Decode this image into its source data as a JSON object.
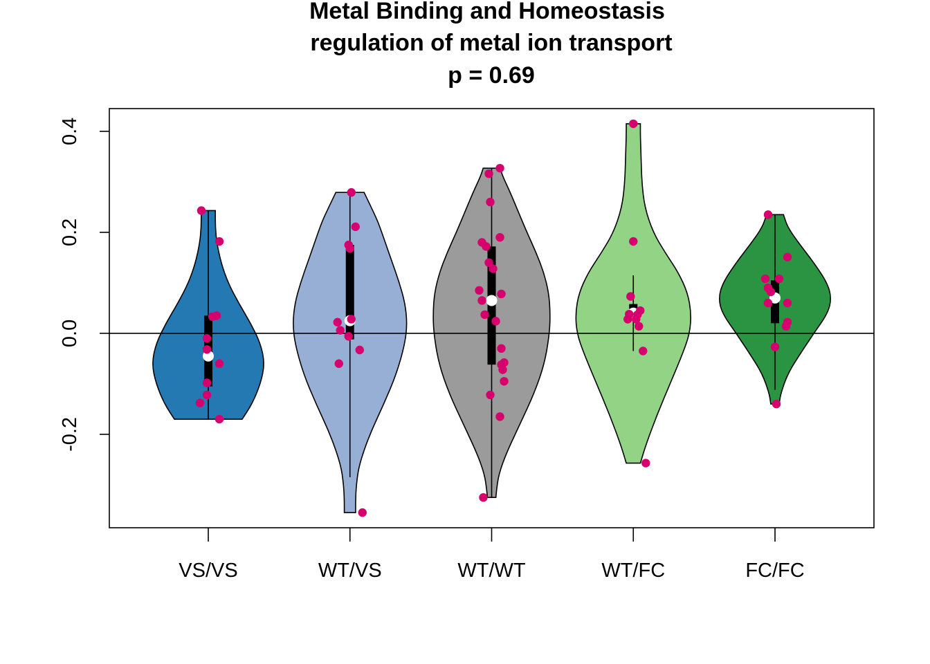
{
  "chart_data": {
    "type": "violin",
    "title_lines": [
      "Metal Binding and Homeostasis",
      "regulation of metal ion transport",
      "p = 0.69"
    ],
    "xlabel": "",
    "ylabel": "",
    "ylim": [
      -0.385,
      0.445
    ],
    "y_ticks": [
      -0.2,
      0.0,
      0.2,
      0.4
    ],
    "y_tick_labels": [
      "-0.2",
      "0.0",
      "0.2",
      "0.4"
    ],
    "reference_line_y": 0.0,
    "point_color": "#d5006d",
    "groups": [
      {
        "label": "VS/VS",
        "color": "#2479b3",
        "whisker": [
          -0.17,
          0.243
        ],
        "box": [
          -0.105,
          0.035
        ],
        "median": -0.045,
        "density": [
          [
            -0.17,
            0.48
          ],
          [
            -0.14,
            0.62
          ],
          [
            -0.1,
            0.74
          ],
          [
            -0.06,
            0.8
          ],
          [
            -0.02,
            0.74
          ],
          [
            0.02,
            0.6
          ],
          [
            0.06,
            0.43
          ],
          [
            0.1,
            0.28
          ],
          [
            0.14,
            0.18
          ],
          [
            0.18,
            0.12
          ],
          [
            0.21,
            0.1
          ],
          [
            0.243,
            0.1
          ]
        ],
        "points": [
          {
            "x": -0.05,
            "y": 0.243
          },
          {
            "x": 0.08,
            "y": 0.182
          },
          {
            "x": 0.06,
            "y": 0.035
          },
          {
            "x": 0.03,
            "y": 0.033
          },
          {
            "x": -0.01,
            "y": -0.01
          },
          {
            "x": -0.01,
            "y": -0.032
          },
          {
            "x": 0.08,
            "y": -0.06
          },
          {
            "x": -0.01,
            "y": -0.098
          },
          {
            "x": -0.01,
            "y": -0.122
          },
          {
            "x": -0.06,
            "y": -0.138
          },
          {
            "x": 0.08,
            "y": -0.17
          }
        ]
      },
      {
        "label": "WT/VS",
        "color": "#97afd5",
        "whisker": [
          -0.285,
          0.279
        ],
        "box": [
          -0.012,
          0.175
        ],
        "median": 0.025,
        "density": [
          [
            -0.355,
            0.08
          ],
          [
            -0.33,
            0.08
          ],
          [
            -0.3,
            0.09
          ],
          [
            -0.26,
            0.13
          ],
          [
            -0.2,
            0.28
          ],
          [
            -0.14,
            0.48
          ],
          [
            -0.08,
            0.66
          ],
          [
            -0.02,
            0.78
          ],
          [
            0.02,
            0.81
          ],
          [
            0.06,
            0.78
          ],
          [
            0.1,
            0.7
          ],
          [
            0.14,
            0.6
          ],
          [
            0.18,
            0.5
          ],
          [
            0.22,
            0.4
          ],
          [
            0.25,
            0.3
          ],
          [
            0.279,
            0.2
          ]
        ],
        "points": [
          {
            "x": 0.01,
            "y": 0.279
          },
          {
            "x": 0.04,
            "y": 0.211
          },
          {
            "x": -0.01,
            "y": 0.175
          },
          {
            "x": 0.0,
            "y": 0.168
          },
          {
            "x": 0.01,
            "y": 0.028
          },
          {
            "x": -0.09,
            "y": 0.022
          },
          {
            "x": -0.07,
            "y": 0.006
          },
          {
            "x": -0.01,
            "y": -0.006
          },
          {
            "x": 0.07,
            "y": -0.033
          },
          {
            "x": -0.08,
            "y": -0.06
          },
          {
            "x": 0.09,
            "y": -0.355
          }
        ]
      },
      {
        "label": "WT/WT",
        "color": "#9b9b9b",
        "whisker": [
          -0.325,
          0.327
        ],
        "box": [
          -0.062,
          0.172
        ],
        "median": 0.065,
        "density": [
          [
            -0.325,
            0.06
          ],
          [
            -0.31,
            0.07
          ],
          [
            -0.28,
            0.1
          ],
          [
            -0.24,
            0.2
          ],
          [
            -0.18,
            0.4
          ],
          [
            -0.12,
            0.6
          ],
          [
            -0.06,
            0.75
          ],
          [
            0.0,
            0.82
          ],
          [
            0.04,
            0.83
          ],
          [
            0.08,
            0.81
          ],
          [
            0.12,
            0.74
          ],
          [
            0.16,
            0.63
          ],
          [
            0.2,
            0.5
          ],
          [
            0.24,
            0.38
          ],
          [
            0.28,
            0.26
          ],
          [
            0.31,
            0.16
          ],
          [
            0.327,
            0.12
          ]
        ],
        "points": [
          {
            "x": 0.06,
            "y": 0.327
          },
          {
            "x": -0.02,
            "y": 0.316
          },
          {
            "x": -0.01,
            "y": 0.26
          },
          {
            "x": 0.06,
            "y": 0.19
          },
          {
            "x": -0.07,
            "y": 0.18
          },
          {
            "x": -0.04,
            "y": 0.172
          },
          {
            "x": -0.02,
            "y": 0.14
          },
          {
            "x": 0.01,
            "y": 0.128
          },
          {
            "x": -0.09,
            "y": 0.085
          },
          {
            "x": 0.07,
            "y": 0.078
          },
          {
            "x": -0.07,
            "y": 0.065
          },
          {
            "x": -0.05,
            "y": 0.037
          },
          {
            "x": 0.03,
            "y": 0.024
          },
          {
            "x": 0.07,
            "y": -0.03
          },
          {
            "x": 0.09,
            "y": -0.058
          },
          {
            "x": 0.07,
            "y": -0.062
          },
          {
            "x": 0.08,
            "y": -0.072
          },
          {
            "x": 0.09,
            "y": -0.095
          },
          {
            "x": -0.01,
            "y": -0.122
          },
          {
            "x": 0.06,
            "y": -0.165
          },
          {
            "x": -0.06,
            "y": -0.325
          }
        ]
      },
      {
        "label": "WT/FC",
        "color": "#93d386",
        "whisker": [
          -0.035,
          0.115
        ],
        "box": [
          0.028,
          0.058
        ],
        "median": 0.04,
        "density": [
          [
            -0.257,
            0.1
          ],
          [
            -0.22,
            0.18
          ],
          [
            -0.16,
            0.34
          ],
          [
            -0.1,
            0.52
          ],
          [
            -0.04,
            0.7
          ],
          [
            0.0,
            0.8
          ],
          [
            0.04,
            0.82
          ],
          [
            0.08,
            0.77
          ],
          [
            0.12,
            0.64
          ],
          [
            0.16,
            0.45
          ],
          [
            0.2,
            0.28
          ],
          [
            0.25,
            0.16
          ],
          [
            0.3,
            0.12
          ],
          [
            0.35,
            0.11
          ],
          [
            0.39,
            0.1
          ],
          [
            0.415,
            0.1
          ]
        ],
        "points": [
          {
            "x": 0.0,
            "y": 0.415
          },
          {
            "x": 0.0,
            "y": 0.182
          },
          {
            "x": -0.02,
            "y": 0.073
          },
          {
            "x": 0.05,
            "y": 0.045
          },
          {
            "x": -0.03,
            "y": 0.038
          },
          {
            "x": 0.03,
            "y": 0.037
          },
          {
            "x": -0.04,
            "y": 0.028
          },
          {
            "x": 0.02,
            "y": 0.028
          },
          {
            "x": 0.04,
            "y": 0.014
          },
          {
            "x": 0.07,
            "y": -0.035
          },
          {
            "x": 0.09,
            "y": -0.257
          }
        ]
      },
      {
        "label": "FC/FC",
        "color": "#2b9443",
        "whisker": [
          -0.112,
          0.235
        ],
        "box": [
          0.02,
          0.105
        ],
        "median": 0.07,
        "density": [
          [
            -0.14,
            0.06
          ],
          [
            -0.12,
            0.08
          ],
          [
            -0.08,
            0.18
          ],
          [
            -0.04,
            0.36
          ],
          [
            0.0,
            0.55
          ],
          [
            0.04,
            0.75
          ],
          [
            0.07,
            0.8
          ],
          [
            0.1,
            0.74
          ],
          [
            0.14,
            0.55
          ],
          [
            0.18,
            0.33
          ],
          [
            0.21,
            0.18
          ],
          [
            0.235,
            0.12
          ]
        ],
        "points": [
          {
            "x": -0.05,
            "y": 0.235
          },
          {
            "x": 0.09,
            "y": 0.151
          },
          {
            "x": -0.07,
            "y": 0.108
          },
          {
            "x": 0.03,
            "y": 0.108
          },
          {
            "x": -0.05,
            "y": 0.09
          },
          {
            "x": -0.03,
            "y": 0.082
          },
          {
            "x": -0.05,
            "y": 0.06
          },
          {
            "x": 0.09,
            "y": 0.06
          },
          {
            "x": 0.09,
            "y": 0.022
          },
          {
            "x": 0.08,
            "y": 0.014
          },
          {
            "x": 0.0,
            "y": -0.027
          },
          {
            "x": 0.01,
            "y": -0.14
          }
        ]
      }
    ]
  }
}
